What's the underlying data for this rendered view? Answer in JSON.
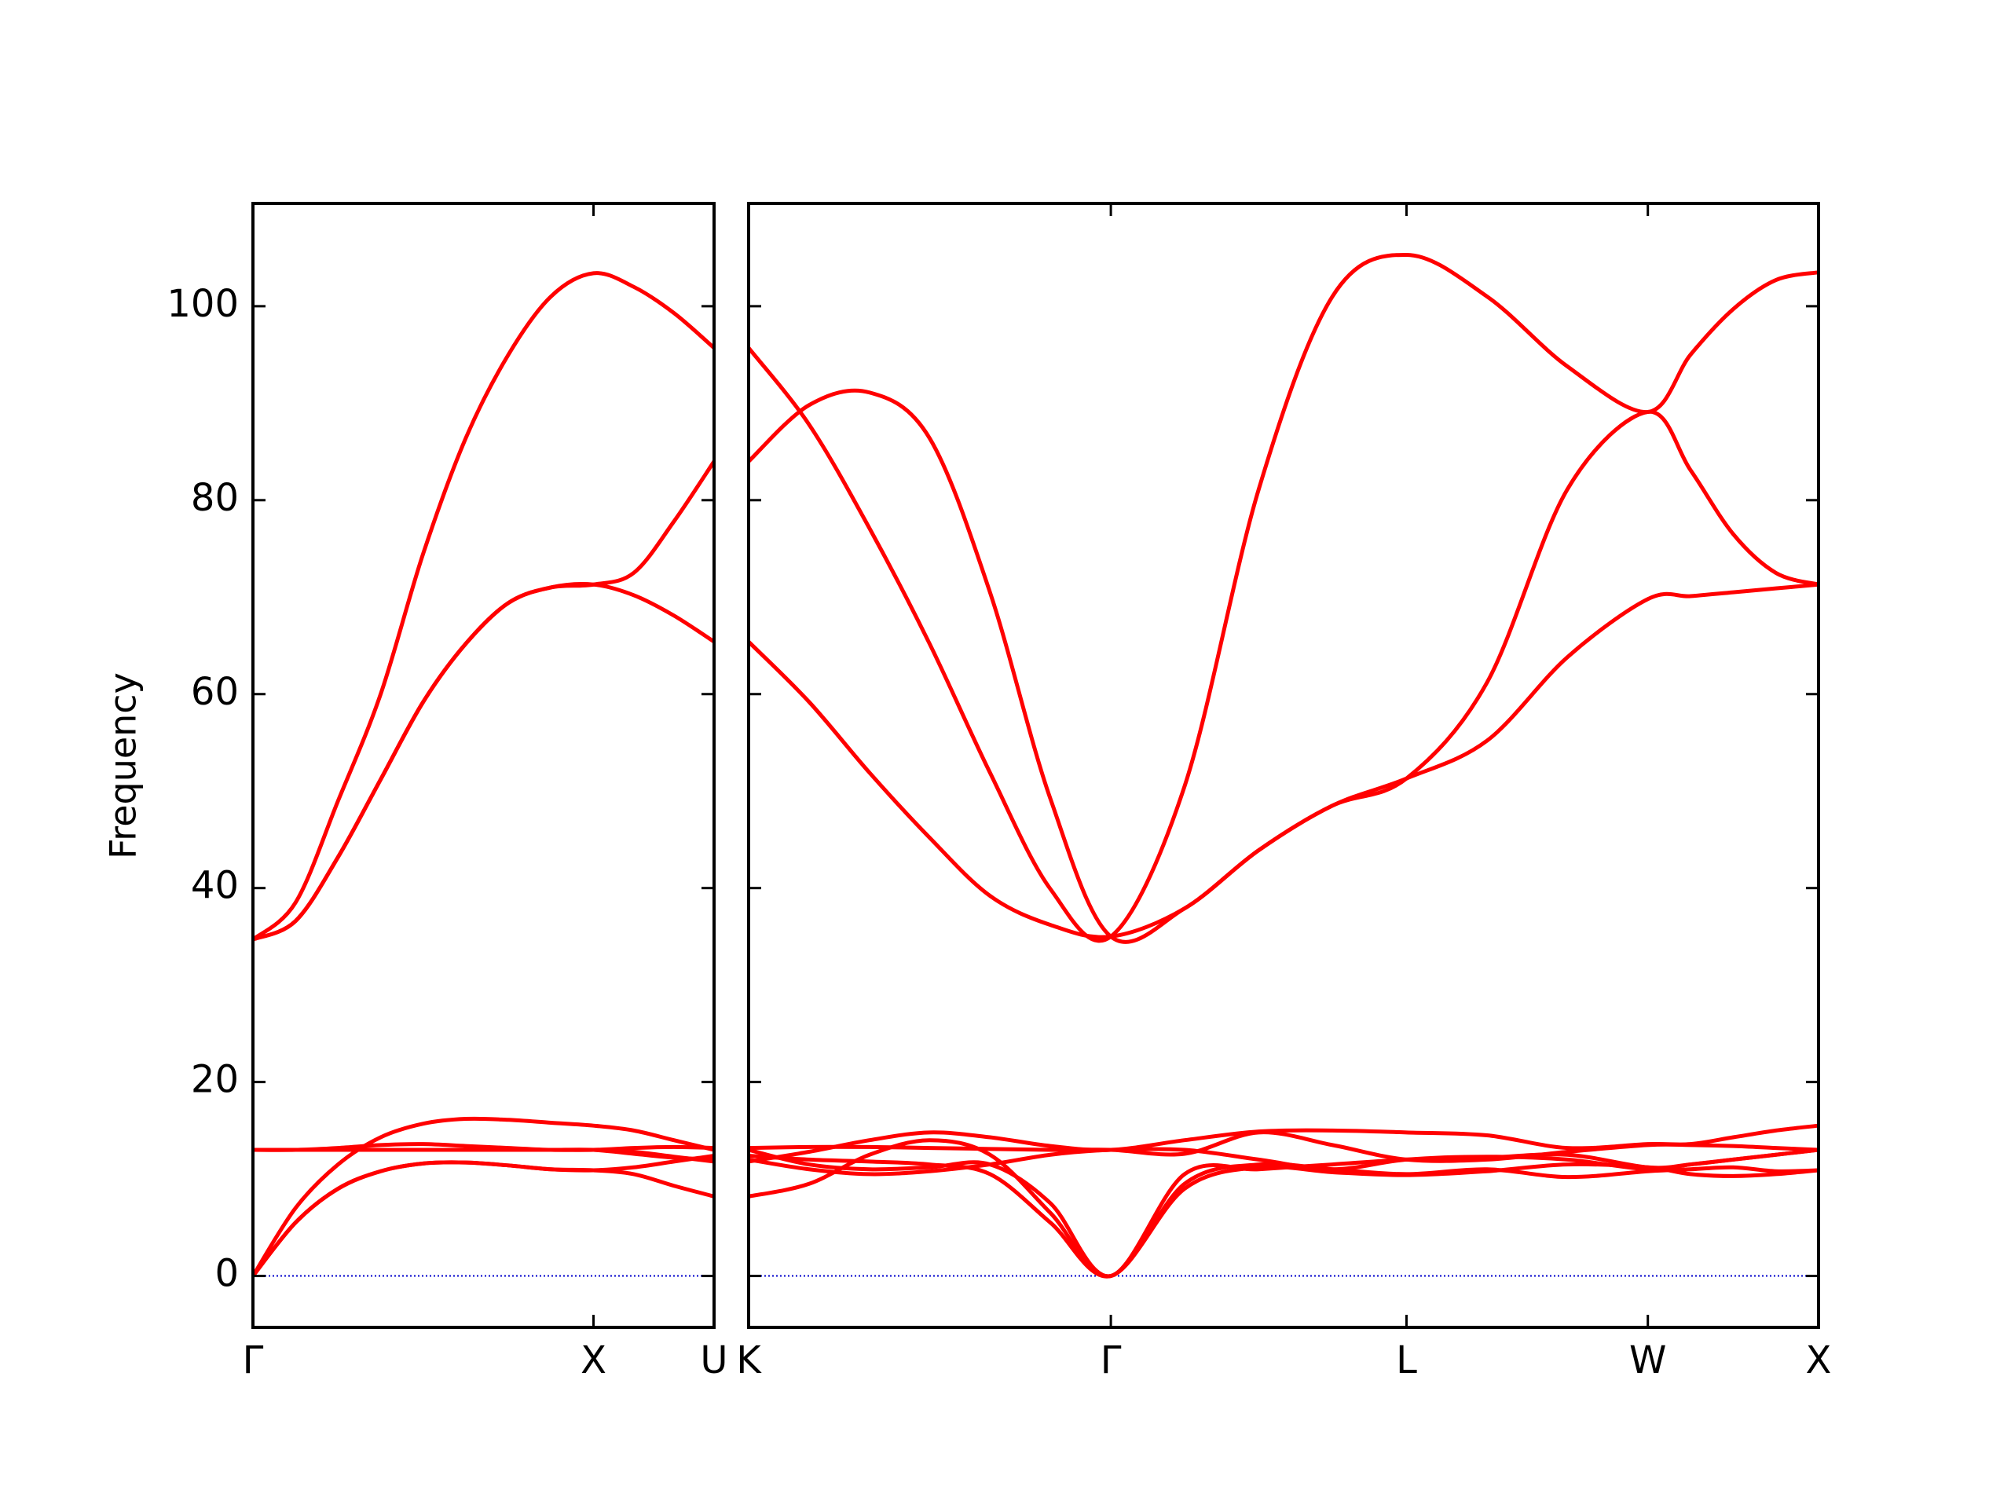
{
  "chart_data": [
    {
      "type": "line",
      "ylabel": "Frequency",
      "color": "#ff0000",
      "x": [
        0,
        0.125,
        0.25,
        0.375,
        0.5,
        0.625,
        0.75,
        0.875,
        1.0,
        1.118,
        1.236,
        1.354
      ],
      "xlim": [
        0,
        1.354
      ],
      "xticks": [
        {
          "value": 0,
          "label": "Γ"
        },
        {
          "value": 1.0,
          "label": "X"
        },
        {
          "value": 1.354,
          "label": "U"
        }
      ],
      "ylim": [
        -5.3,
        110.6
      ],
      "yticks": [
        0,
        20,
        40,
        60,
        80,
        100
      ],
      "ytick_labels": true,
      "zero_line": {
        "y": 0,
        "color": "#0000cc"
      },
      "series": [
        {
          "values": [
            0,
            5.5,
            9.0,
            10.8,
            11.6,
            11.7,
            11.4,
            11.0,
            10.9,
            11.2,
            11.8,
            12.4
          ]
        },
        {
          "values": [
            0,
            5.5,
            9.0,
            10.8,
            11.6,
            11.7,
            11.4,
            11.0,
            10.9,
            10.5,
            9.3,
            8.2
          ]
        },
        {
          "values": [
            0,
            7.0,
            11.5,
            14.3,
            15.7,
            16.2,
            16.1,
            15.8,
            15.5,
            15.0,
            14.0,
            13.0
          ]
        },
        {
          "values": [
            13.0,
            13.0,
            13.2,
            13.5,
            13.6,
            13.4,
            13.2,
            13.0,
            13.0,
            12.8,
            12.3,
            11.8
          ]
        },
        {
          "values": [
            13.0,
            13.0,
            13.0,
            13.0,
            13.0,
            13.0,
            13.0,
            13.0,
            13.0,
            13.2,
            13.3,
            13.2
          ]
        },
        {
          "values": [
            13.0,
            13.0,
            13.0,
            13.0,
            13.0,
            13.0,
            13.0,
            13.0,
            13.0,
            12.6,
            12.2,
            12.0
          ]
        },
        {
          "values": [
            34.7,
            36.6,
            43.2,
            51.2,
            59.2,
            65.2,
            69.4,
            71.0,
            71.3,
            70.2,
            68.1,
            65.4
          ]
        },
        {
          "values": [
            34.7,
            36.6,
            43.2,
            51.2,
            59.2,
            65.2,
            69.4,
            71.0,
            71.3,
            72.5,
            77.8,
            84.0
          ]
        },
        {
          "values": [
            34.7,
            38.5,
            49.0,
            60.0,
            74.5,
            86.4,
            95.0,
            101.0,
            103.4,
            102.0,
            99.3,
            95.7
          ]
        }
      ]
    },
    {
      "type": "line",
      "color": "#ff0000",
      "x": [
        0,
        0.177,
        0.354,
        0.53,
        0.707,
        0.884,
        1.061,
        1.277,
        1.494,
        1.71,
        1.927,
        2.163,
        2.398,
        2.634,
        2.759,
        2.884,
        3.009,
        3.134
      ],
      "xlim": [
        0,
        3.134
      ],
      "xticks": [
        {
          "value": 0,
          "label": "K"
        },
        {
          "value": 1.061,
          "label": "Γ"
        },
        {
          "value": 1.927,
          "label": "L"
        },
        {
          "value": 2.634,
          "label": "W"
        },
        {
          "value": 3.134,
          "label": "X"
        }
      ],
      "ylim": [
        -5.3,
        110.6
      ],
      "yticks": [
        0,
        20,
        40,
        60,
        80,
        100
      ],
      "ytick_labels": false,
      "zero_line": {
        "y": 0,
        "color": "#0000cc"
      },
      "series": [
        {
          "values": [
            12.4,
            12.0,
            11.8,
            11.5,
            10.5,
            5.5,
            0,
            9.0,
            11.2,
            10.7,
            10.4,
            10.8,
            11.5,
            11.2,
            10.5,
            10.3,
            10.5,
            10.9
          ]
        },
        {
          "values": [
            8.2,
            9.5,
            12.5,
            14.0,
            12.5,
            6.5,
            0,
            9.5,
            11.5,
            11.0,
            10.5,
            11.0,
            10.2,
            10.8,
            11.0,
            11.2,
            10.8,
            10.9
          ]
        },
        {
          "values": [
            13.0,
            11.5,
            11.0,
            11.2,
            11.5,
            7.5,
            0,
            10.5,
            11.0,
            11.5,
            12.0,
            12.2,
            12.5,
            11.2,
            11.5,
            12.0,
            12.5,
            13.0
          ]
        },
        {
          "values": [
            11.8,
            12.8,
            14.0,
            14.8,
            14.3,
            13.4,
            13.0,
            14.0,
            14.9,
            15.0,
            14.8,
            14.5,
            13.2,
            13.6,
            13.6,
            14.3,
            15.0,
            15.5
          ]
        },
        {
          "values": [
            13.2,
            13.3,
            13.3,
            13.2,
            13.1,
            13.0,
            13.0,
            12.6,
            14.8,
            13.5,
            12.0,
            12.0,
            12.8,
            13.5,
            13.5,
            13.4,
            13.2,
            13.0
          ]
        },
        {
          "values": [
            12.0,
            11.0,
            10.5,
            10.8,
            11.5,
            12.5,
            13.0,
            13.0,
            12.0,
            11.0,
            12.0,
            12.3,
            12.0,
            11.0,
            11.5,
            12.0,
            12.5,
            13.0
          ]
        },
        {
          "values": [
            65.4,
            59.2,
            51.9,
            45.2,
            39.2,
            36.2,
            35.0,
            37.9,
            43.9,
            48.5,
            51.3,
            55.2,
            63.8,
            69.8,
            70.1,
            70.5,
            70.9,
            71.3
          ]
        },
        {
          "values": [
            84.0,
            89.8,
            91.1,
            86.4,
            70.5,
            49.2,
            35.0,
            37.9,
            43.9,
            48.5,
            51.3,
            61.2,
            81.1,
            89.1,
            83.1,
            76.5,
            72.5,
            71.3
          ]
        },
        {
          "values": [
            95.7,
            87.8,
            77.1,
            65.2,
            51.9,
            39.9,
            35.0,
            50.5,
            81.1,
            101.0,
            105.3,
            101.0,
            93.8,
            89.1,
            95.0,
            99.7,
            102.7,
            103.5
          ]
        }
      ]
    }
  ]
}
